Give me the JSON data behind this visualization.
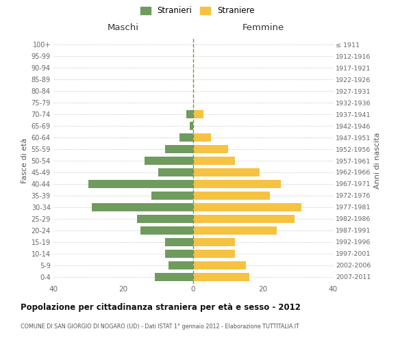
{
  "age_groups": [
    "0-4",
    "5-9",
    "10-14",
    "15-19",
    "20-24",
    "25-29",
    "30-34",
    "35-39",
    "40-44",
    "45-49",
    "50-54",
    "55-59",
    "60-64",
    "65-69",
    "70-74",
    "75-79",
    "80-84",
    "85-89",
    "90-94",
    "95-99",
    "100+"
  ],
  "birth_years": [
    "2007-2011",
    "2002-2006",
    "1997-2001",
    "1992-1996",
    "1987-1991",
    "1982-1986",
    "1977-1981",
    "1972-1976",
    "1967-1971",
    "1962-1966",
    "1957-1961",
    "1952-1956",
    "1947-1951",
    "1942-1946",
    "1937-1941",
    "1932-1936",
    "1927-1931",
    "1922-1926",
    "1917-1921",
    "1912-1916",
    "≤ 1911"
  ],
  "maschi": [
    11,
    7,
    8,
    8,
    15,
    16,
    29,
    12,
    30,
    10,
    14,
    8,
    4,
    1,
    2,
    0,
    0,
    0,
    0,
    0,
    0
  ],
  "femmine": [
    16,
    15,
    12,
    12,
    24,
    29,
    31,
    22,
    25,
    19,
    12,
    10,
    5,
    0,
    3,
    0,
    0,
    0,
    0,
    0,
    0
  ],
  "color_maschi": "#6f9b5e",
  "color_femmine": "#f5c242",
  "bg_color": "#ffffff",
  "grid_color": "#cccccc",
  "title": "Popolazione per cittadinanza straniera per età e sesso - 2012",
  "subtitle": "COMUNE DI SAN GIORGIO DI NOGARO (UD) - Dati ISTAT 1° gennaio 2012 - Elaborazione TUTTITALIA.IT",
  "ylabel_left": "Fasce di età",
  "ylabel_right": "Anni di nascita",
  "xlim": 40,
  "legend_stranieri": "Stranieri",
  "legend_straniere": "Straniere",
  "col_maschi": "Maschi",
  "col_femmine": "Femmine"
}
